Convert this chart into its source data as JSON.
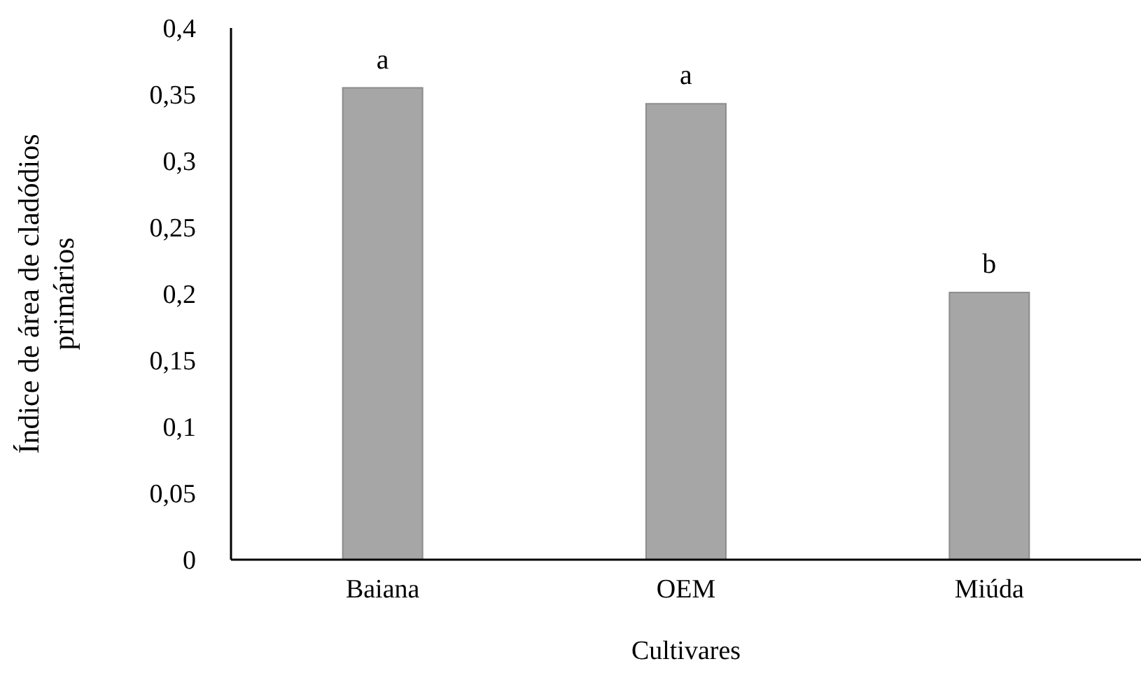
{
  "chart_data": {
    "type": "bar",
    "xlabel": "Cultivares",
    "ylabel": "Índice de área de cladódios primários",
    "categories": [
      "Baiana",
      "OEM",
      "Miúda"
    ],
    "values": [
      0.355,
      0.343,
      0.201
    ],
    "color": "#a6a6a6",
    "ylim": [
      0,
      0.4
    ],
    "yticks": [
      {
        "value": 0,
        "label": "0"
      },
      {
        "value": 0.05,
        "label": "0,05"
      },
      {
        "value": 0.1,
        "label": "0,1"
      },
      {
        "value": 0.15,
        "label": "0,15"
      },
      {
        "value": 0.2,
        "label": "0,2"
      },
      {
        "value": 0.25,
        "label": "0,25"
      },
      {
        "value": 0.3,
        "label": "0,3"
      },
      {
        "value": 0.35,
        "label": "0,35"
      },
      {
        "value": 0.4,
        "label": "0,4"
      }
    ],
    "grid": false,
    "annotations": [
      {
        "text": "a",
        "x": "Baiana",
        "y": 0.355
      },
      {
        "text": "a",
        "x": "OEM",
        "y": 0.343
      },
      {
        "text": "b",
        "x": "Miúda",
        "y": 0.201
      }
    ]
  }
}
